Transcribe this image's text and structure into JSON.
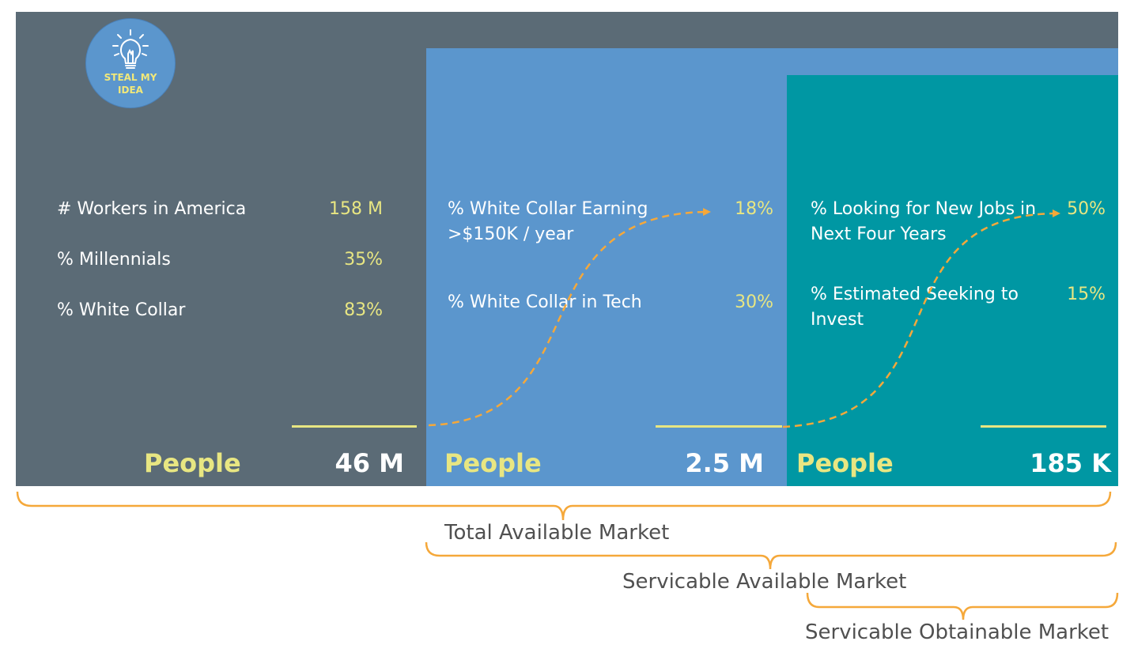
{
  "logo": {
    "text": "STEAL MY\nIDEA"
  },
  "tam": {
    "rows": [
      {
        "label": "# Workers in America",
        "value": "158 M"
      },
      {
        "label": "% Millennials",
        "value": "35%"
      },
      {
        "label": "% White Collar",
        "value": "83%"
      }
    ],
    "people_label": "People",
    "total": "46 M"
  },
  "sam": {
    "rows": [
      {
        "label": "% White Collar Earning\n>$150K / year",
        "value": "18%"
      },
      {
        "label": "% White Collar in Tech",
        "value": "30%"
      }
    ],
    "people_label": "People",
    "total": "2.5 M"
  },
  "som": {
    "rows": [
      {
        "label": "% Looking for New Jobs in\nNext Four Years",
        "value": "50%"
      },
      {
        "label": "% Estimated Seeking to\nInvest",
        "value": "15%"
      }
    ],
    "people_label": "People",
    "total": "185 K"
  },
  "markets": {
    "total_available": "Total Available Market",
    "servicable_available": "Servicable Available Market",
    "servicable_obtainable": "Servicable Obtainable Market"
  },
  "colors": {
    "tam_bg": "#5b6b76",
    "sam_bg": "#5b96cd",
    "som_bg": "#0097a3",
    "accent_yellow": "#e8e682",
    "bracket_orange": "#f5a83a",
    "market_text": "#505050"
  }
}
